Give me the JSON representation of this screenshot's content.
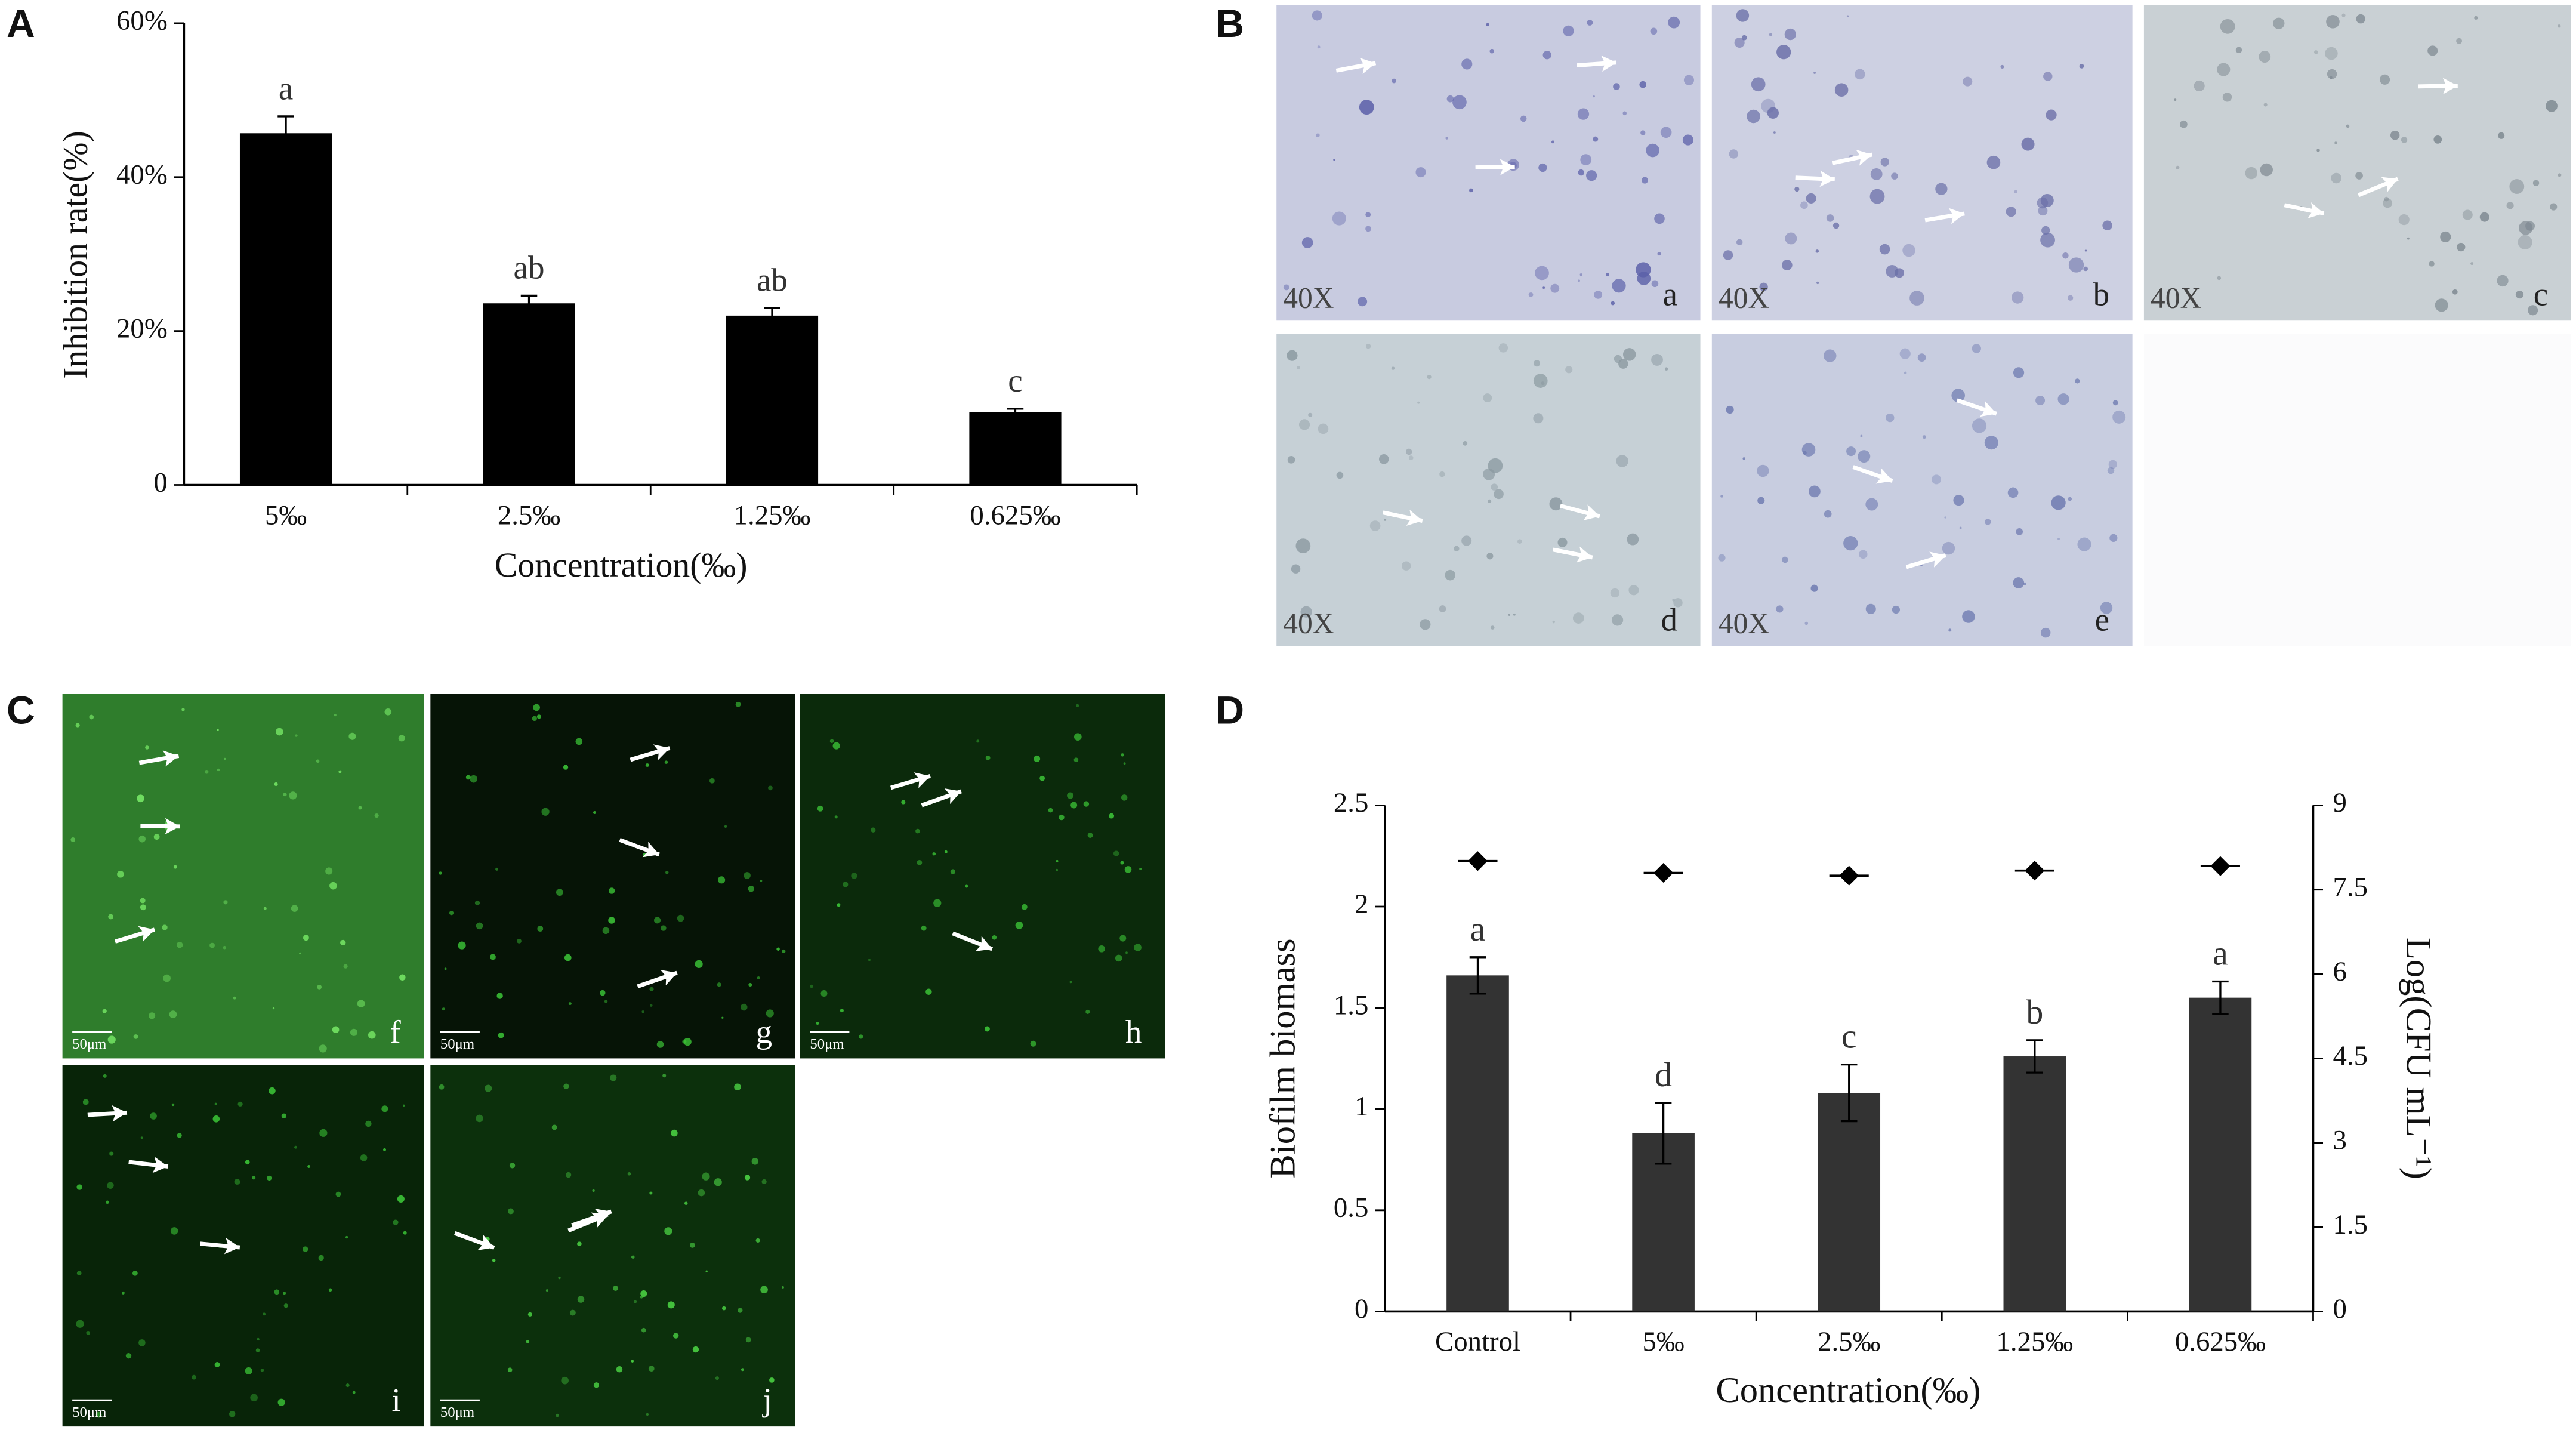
{
  "panel_letters": [
    "A",
    "B",
    "C",
    "D"
  ],
  "micrographs": [
    {
      "label": "a",
      "magnification": "40X"
    },
    {
      "label": "b",
      "magnification": "40X"
    },
    {
      "label": "c",
      "magnification": "40X"
    },
    {
      "label": "d",
      "magnification": "40X"
    },
    {
      "label": "e",
      "magnification": "40X"
    },
    {
      "label": "f",
      "scale": "50μm"
    },
    {
      "label": "g",
      "scale": "50μm"
    },
    {
      "label": "h",
      "scale": "50μm"
    },
    {
      "label": "i",
      "scale": "50μm"
    },
    {
      "label": "j",
      "scale": "50μm"
    }
  ],
  "chart_data": [
    {
      "type": "bar",
      "xlabel": "Concentration(‰)",
      "ylabel": "Inhibition rate(%)",
      "categories": [
        "5‰",
        "2.5‰",
        "1.25‰",
        "0.625‰"
      ],
      "values": [
        45.7,
        23.6,
        22,
        9.5
      ],
      "errors": [
        2.2,
        1,
        1,
        0.4
      ],
      "annotations": [
        "a",
        "ab",
        "ab",
        "c"
      ],
      "color": "#000000",
      "ylim": [
        0,
        60
      ],
      "yticks": [
        0,
        {
          "value": 20,
          "label": "20%"
        },
        {
          "value": 40,
          "label": "40%"
        },
        {
          "value": 60,
          "label": "60%"
        }
      ]
    },
    {
      "type": "bar",
      "xlabel": "Concentration(‰)",
      "ylabel": "Biofilm biomass",
      "y2label": "Log(CFU mL⁻¹)",
      "categories": [
        "Control",
        "5‰",
        "2.5‰",
        "1.25‰",
        "0.625‰"
      ],
      "series": [
        {
          "color": "#333333",
          "values": [
            1.66,
            0.88,
            1.08,
            1.26,
            1.55
          ],
          "errors": [
            0.09,
            0.15,
            0.14,
            0.08,
            0.08
          ],
          "annotations": [
            "a",
            "d",
            "c",
            "b",
            "a"
          ]
        },
        {
          "type": "scatter",
          "axis": "y2",
          "marker": "diamond",
          "color": "#000000",
          "values": [
            8.01,
            7.8,
            7.75,
            7.84,
            7.92
          ]
        }
      ],
      "ylim": [
        0,
        2.5
      ],
      "yticks": [
        0,
        0.5,
        1,
        1.5,
        2,
        2.5
      ],
      "y2lim": [
        0,
        9
      ],
      "y2ticks": [
        0,
        1.5,
        3,
        4.5,
        6,
        7.5,
        9
      ]
    }
  ]
}
